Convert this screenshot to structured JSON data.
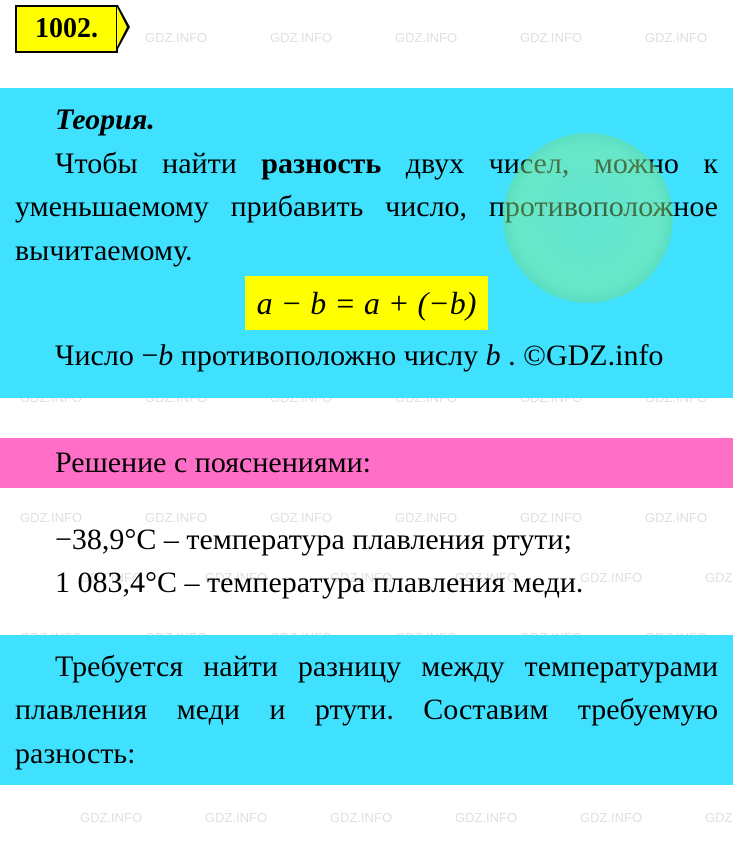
{
  "problem_number": "1002.",
  "watermark_text": "GDZ.INFO",
  "watermark_color": "rgba(128,128,128,0.25)",
  "theory": {
    "title": "Теория.",
    "text_before_bold": "Чтобы найти ",
    "bold_word": "разность",
    "text_after_bold": " двух чисел, можно к уменьшаемому прибавить число, противоположное вычитаемому.",
    "formula": "a − b = a + (−b)",
    "text2_part1": "Число −",
    "text2_var1": "b",
    "text2_part2": " противоположно числу ",
    "text2_var2": "b",
    "text2_part3": " . ©GDZ.info"
  },
  "solution_header": "Решение с пояснениями:",
  "body": {
    "line1": "−38,9°C – температура плавления ртути;",
    "line2": "1 083,4°C – температура плавления меди."
  },
  "cyan_text": "Требуется найти разницу между температурами плавления меди и ртути. Составим требуемую разность:",
  "colors": {
    "yellow": "#ffff00",
    "cyan": "#40e0ff",
    "magenta": "#ff6ec7",
    "background": "#ffffff"
  }
}
